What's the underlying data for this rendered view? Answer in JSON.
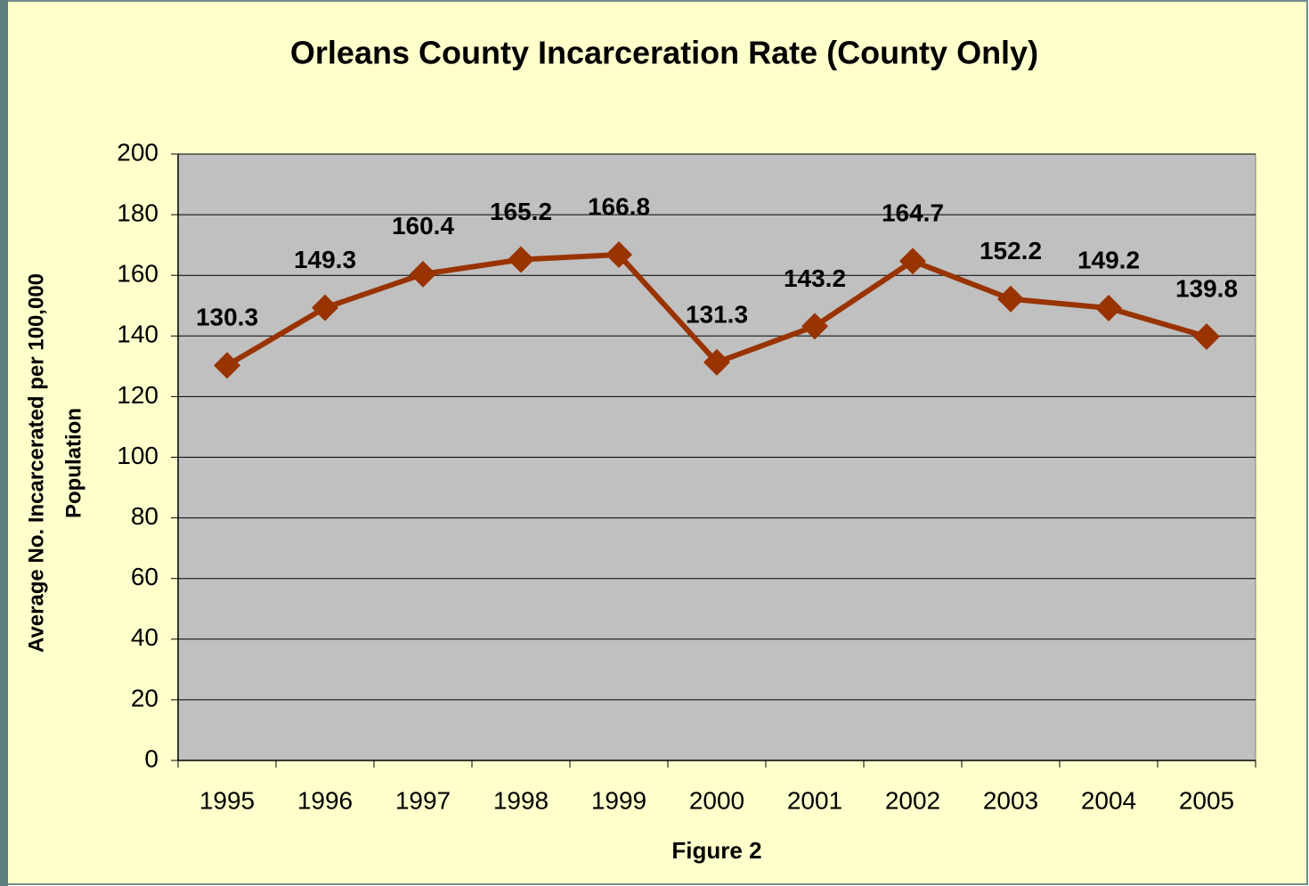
{
  "chart_data": {
    "type": "line",
    "title": "Orleans County Incarceration Rate (County Only)",
    "x_label": "Figure 2",
    "y_label": [
      "Average No. Incarcerated per 100,000",
      "Population"
    ],
    "categories": [
      "1995",
      "1996",
      "1997",
      "1998",
      "1999",
      "2000",
      "2001",
      "2002",
      "2003",
      "2004",
      "2005"
    ],
    "series": [
      {
        "color": "#993300",
        "values": [
          130.3,
          149.3,
          160.4,
          165.2,
          166.8,
          131.3,
          143.2,
          164.7,
          152.2,
          149.2,
          139.8
        ]
      }
    ],
    "ylim": [
      0,
      200
    ],
    "yticks": [
      0,
      20,
      40,
      60,
      80,
      100,
      120,
      140,
      160,
      180,
      200
    ],
    "grid": true
  }
}
